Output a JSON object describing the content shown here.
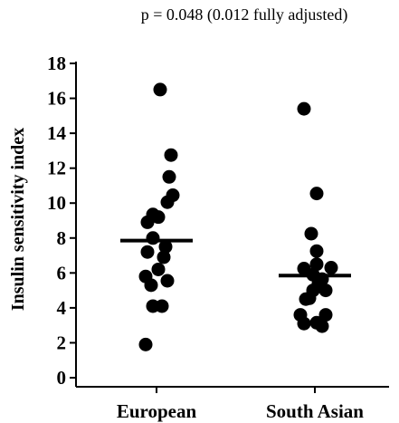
{
  "chart_data": {
    "type": "scatter",
    "annotation": "p = 0.048 (0.012 fully adjusted)",
    "ylabel": "Insulin sensitivity index",
    "xlabel": "",
    "ylim": [
      0,
      18
    ],
    "yticks": [
      0,
      2,
      4,
      6,
      8,
      10,
      12,
      14,
      16,
      18
    ],
    "categories": [
      "European",
      "South Asian"
    ],
    "groups": [
      {
        "category": "European",
        "mean": 7.85,
        "points": [
          {
            "jitter": 0.1,
            "y": 16.5
          },
          {
            "jitter": 0.4,
            "y": 12.75
          },
          {
            "jitter": 0.35,
            "y": 11.5
          },
          {
            "jitter": 0.45,
            "y": 10.45
          },
          {
            "jitter": 0.3,
            "y": 10.05
          },
          {
            "jitter": -0.1,
            "y": 9.35
          },
          {
            "jitter": 0.05,
            "y": 9.2
          },
          {
            "jitter": -0.25,
            "y": 8.9
          },
          {
            "jitter": -0.1,
            "y": 8.0
          },
          {
            "jitter": 0.25,
            "y": 7.5
          },
          {
            "jitter": -0.25,
            "y": 7.2
          },
          {
            "jitter": 0.2,
            "y": 6.9
          },
          {
            "jitter": 0.05,
            "y": 6.2
          },
          {
            "jitter": -0.3,
            "y": 5.8
          },
          {
            "jitter": 0.3,
            "y": 5.55
          },
          {
            "jitter": -0.15,
            "y": 5.3
          },
          {
            "jitter": -0.1,
            "y": 4.1
          },
          {
            "jitter": 0.15,
            "y": 4.1
          },
          {
            "jitter": -0.3,
            "y": 1.9
          }
        ]
      },
      {
        "category": "South Asian",
        "mean": 5.85,
        "points": [
          {
            "jitter": -0.3,
            "y": 15.4
          },
          {
            "jitter": 0.05,
            "y": 10.55
          },
          {
            "jitter": -0.1,
            "y": 8.25
          },
          {
            "jitter": 0.05,
            "y": 7.25
          },
          {
            "jitter": -0.3,
            "y": 6.25
          },
          {
            "jitter": 0.05,
            "y": 6.5
          },
          {
            "jitter": 0.45,
            "y": 6.3
          },
          {
            "jitter": -0.05,
            "y": 5.9
          },
          {
            "jitter": 0.2,
            "y": 5.65
          },
          {
            "jitter": 0.1,
            "y": 5.4
          },
          {
            "jitter": -0.05,
            "y": 5.0
          },
          {
            "jitter": 0.3,
            "y": 5.0
          },
          {
            "jitter": -0.15,
            "y": 4.55
          },
          {
            "jitter": -0.25,
            "y": 4.5
          },
          {
            "jitter": -0.4,
            "y": 3.6
          },
          {
            "jitter": 0.3,
            "y": 3.6
          },
          {
            "jitter": -0.3,
            "y": 3.1
          },
          {
            "jitter": 0.05,
            "y": 3.15
          },
          {
            "jitter": 0.2,
            "y": 2.95
          }
        ]
      }
    ],
    "grid": false,
    "legend": "none"
  }
}
